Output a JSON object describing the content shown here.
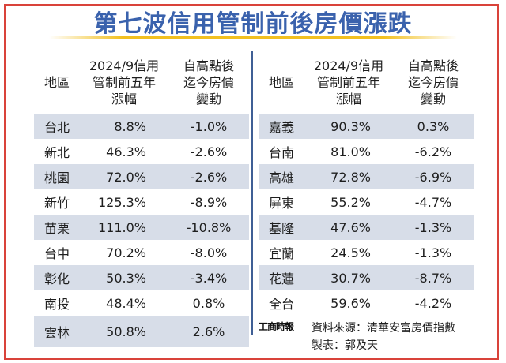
{
  "title": "第七波信用管制前後房價漲跌",
  "headers": {
    "region": "地區",
    "growth": "2024/9信用\n管制前五年\n漲幅",
    "change": "自高點後\n迄今房價\n變動"
  },
  "chart_data": {
    "type": "table",
    "columns": [
      "地區",
      "2024/9信用管制前五年漲幅",
      "自高點後迄今房價變動"
    ],
    "rows": [
      [
        "台北",
        "8.8%",
        "-1.0%"
      ],
      [
        "新北",
        "46.3%",
        "-2.6%"
      ],
      [
        "桃園",
        "72.0%",
        "-2.6%"
      ],
      [
        "新竹",
        "125.3%",
        "-8.9%"
      ],
      [
        "苗栗",
        "111.0%",
        "-10.8%"
      ],
      [
        "台中",
        "70.2%",
        "-8.0%"
      ],
      [
        "彰化",
        "50.3%",
        "-3.4%"
      ],
      [
        "南投",
        "48.4%",
        "0.8%"
      ],
      [
        "雲林",
        "50.8%",
        "2.6%"
      ],
      [
        "嘉義",
        "90.3%",
        "0.3%"
      ],
      [
        "台南",
        "81.0%",
        "-6.2%"
      ],
      [
        "高雄",
        "72.8%",
        "-6.9%"
      ],
      [
        "屏東",
        "55.2%",
        "-4.7%"
      ],
      [
        "基隆",
        "47.6%",
        "-1.3%"
      ],
      [
        "宜蘭",
        "24.5%",
        "-1.3%"
      ],
      [
        "花蓮",
        "30.7%",
        "-8.7%"
      ],
      [
        "全台",
        "59.6%",
        "-4.2%"
      ]
    ]
  },
  "footer": {
    "logo": "工商時報",
    "source": "資料來源：清華安富房價指數",
    "credit": "製表：郭及天"
  },
  "colors": {
    "title": "#3a62ad",
    "stripe": "#d7dde8",
    "frame": "#d9433a",
    "divider": "#3f5f95",
    "rule": "#f2c020"
  }
}
